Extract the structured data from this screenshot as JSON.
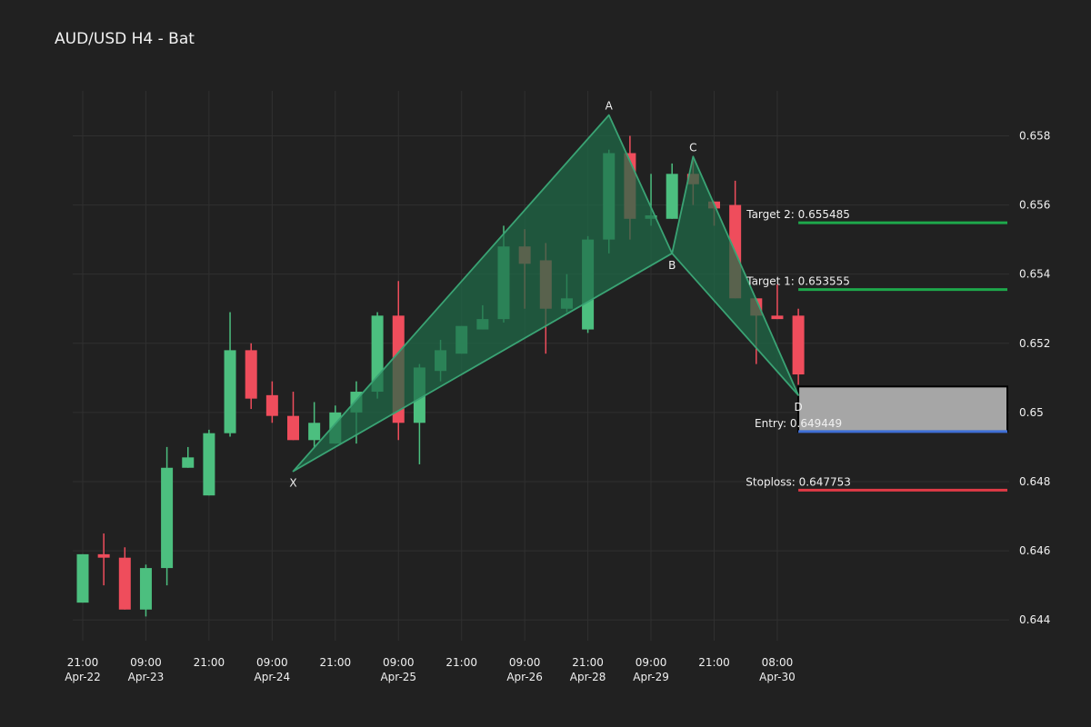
{
  "chart_data": {
    "type": "candlestick",
    "title": "AUD/USD H4 - Bat",
    "grid": true,
    "legend": "none",
    "colors": {
      "background": "#212121",
      "grid": "#303030",
      "up": "#4cbf7f",
      "down": "#ef4d5c",
      "pattern_fill": "#1f6b48",
      "pattern_line": "#3aa374",
      "target": "#1ea84b",
      "entry": "#3f6fd6",
      "stoploss": "#e03a46",
      "zone_fill": "#a6a6a6",
      "text": "#f0f0f0"
    },
    "ylim": [
      0.6434,
      0.6593
    ],
    "yticks": [
      0.644,
      0.646,
      0.648,
      0.65,
      0.652,
      0.654,
      0.656,
      0.658
    ],
    "ytick_labels": [
      "0.644",
      "0.646",
      "0.648",
      "0.65",
      "0.652",
      "0.654",
      "0.656",
      "0.658"
    ],
    "x_range": [
      -0.5,
      41.5
    ],
    "xticks": [
      {
        "index": 0,
        "line1": "21:00",
        "line2": "Apr-22"
      },
      {
        "index": 3,
        "line1": "09:00",
        "line2": "Apr-23"
      },
      {
        "index": 6,
        "line1": "21:00",
        "line2": ""
      },
      {
        "index": 9,
        "line1": "09:00",
        "line2": "Apr-24"
      },
      {
        "index": 12,
        "line1": "21:00",
        "line2": ""
      },
      {
        "index": 15,
        "line1": "09:00",
        "line2": "Apr-25"
      },
      {
        "index": 18,
        "line1": "21:00",
        "line2": ""
      },
      {
        "index": 21,
        "line1": "09:00",
        "line2": "Apr-26"
      },
      {
        "index": 24,
        "line1": "21:00",
        "line2": "Apr-28"
      },
      {
        "index": 27,
        "line1": "09:00",
        "line2": "Apr-29"
      },
      {
        "index": 30,
        "line1": "21:00",
        "line2": ""
      },
      {
        "index": 33,
        "line1": "08:00",
        "line2": "Apr-30"
      }
    ],
    "candles": [
      {
        "o": 0.6445,
        "h": 0.6459,
        "l": 0.6445,
        "c": 0.6459
      },
      {
        "o": 0.6459,
        "h": 0.6465,
        "l": 0.645,
        "c": 0.6458
      },
      {
        "o": 0.6458,
        "h": 0.6461,
        "l": 0.6443,
        "c": 0.6443
      },
      {
        "o": 0.6443,
        "h": 0.6456,
        "l": 0.6441,
        "c": 0.6455
      },
      {
        "o": 0.6455,
        "h": 0.649,
        "l": 0.645,
        "c": 0.6484
      },
      {
        "o": 0.6484,
        "h": 0.649,
        "l": 0.6484,
        "c": 0.6487
      },
      {
        "o": 0.6476,
        "h": 0.6495,
        "l": 0.6476,
        "c": 0.6494
      },
      {
        "o": 0.6494,
        "h": 0.6529,
        "l": 0.6493,
        "c": 0.6518
      },
      {
        "o": 0.6518,
        "h": 0.652,
        "l": 0.6501,
        "c": 0.6504
      },
      {
        "o": 0.6505,
        "h": 0.6509,
        "l": 0.6497,
        "c": 0.6499
      },
      {
        "o": 0.6499,
        "h": 0.6506,
        "l": 0.6492,
        "c": 0.6492
      },
      {
        "o": 0.6492,
        "h": 0.6503,
        "l": 0.649,
        "c": 0.6497
      },
      {
        "o": 0.6491,
        "h": 0.6502,
        "l": 0.6491,
        "c": 0.65
      },
      {
        "o": 0.65,
        "h": 0.6509,
        "l": 0.6491,
        "c": 0.6506
      },
      {
        "o": 0.6506,
        "h": 0.6529,
        "l": 0.6504,
        "c": 0.6528
      },
      {
        "o": 0.6528,
        "h": 0.6538,
        "l": 0.6492,
        "c": 0.6497
      },
      {
        "o": 0.6497,
        "h": 0.6514,
        "l": 0.6485,
        "c": 0.6513
      },
      {
        "o": 0.6512,
        "h": 0.6521,
        "l": 0.6509,
        "c": 0.6518
      },
      {
        "o": 0.6517,
        "h": 0.6525,
        "l": 0.6517,
        "c": 0.6525
      },
      {
        "o": 0.6524,
        "h": 0.6531,
        "l": 0.6524,
        "c": 0.6527
      },
      {
        "o": 0.6527,
        "h": 0.6554,
        "l": 0.6526,
        "c": 0.6548
      },
      {
        "o": 0.6548,
        "h": 0.6553,
        "l": 0.653,
        "c": 0.6543
      },
      {
        "o": 0.6544,
        "h": 0.6549,
        "l": 0.6517,
        "c": 0.653
      },
      {
        "o": 0.653,
        "h": 0.654,
        "l": 0.6529,
        "c": 0.6533
      },
      {
        "o": 0.6524,
        "h": 0.6551,
        "l": 0.6523,
        "c": 0.655
      },
      {
        "o": 0.655,
        "h": 0.6576,
        "l": 0.6546,
        "c": 0.6575
      },
      {
        "o": 0.6575,
        "h": 0.658,
        "l": 0.655,
        "c": 0.6556
      },
      {
        "o": 0.6556,
        "h": 0.6569,
        "l": 0.6554,
        "c": 0.6557
      },
      {
        "o": 0.6556,
        "h": 0.6572,
        "l": 0.6556,
        "c": 0.6569
      },
      {
        "o": 0.6569,
        "h": 0.6573,
        "l": 0.656,
        "c": 0.6566
      },
      {
        "o": 0.6561,
        "h": 0.6561,
        "l": 0.6554,
        "c": 0.6559
      },
      {
        "o": 0.656,
        "h": 0.6567,
        "l": 0.6533,
        "c": 0.6533
      },
      {
        "o": 0.6533,
        "h": 0.6533,
        "l": 0.6514,
        "c": 0.6528
      },
      {
        "o": 0.6528,
        "h": 0.6537,
        "l": 0.6527,
        "c": 0.6527
      },
      {
        "o": 0.6528,
        "h": 0.653,
        "l": 0.6508,
        "c": 0.6511
      }
    ],
    "pattern": {
      "name": "Bat",
      "points": [
        {
          "label": "X",
          "index": 10,
          "price": 0.6483,
          "label_pos": "below"
        },
        {
          "label": "A",
          "index": 25,
          "price": 0.6586,
          "label_pos": "above"
        },
        {
          "label": "B",
          "index": 28,
          "price": 0.6546,
          "label_pos": "below"
        },
        {
          "label": "C",
          "index": 29,
          "price": 0.6574,
          "label_pos": "above"
        },
        {
          "label": "D",
          "index": 34,
          "price": 0.6505,
          "label_pos": "below"
        }
      ]
    },
    "levels": [
      {
        "name": "target2",
        "text": "Target 2: 0.655485",
        "price": 0.655485,
        "color_key": "target"
      },
      {
        "name": "target1",
        "text": "Target 1: 0.653555",
        "price": 0.653555,
        "color_key": "target"
      },
      {
        "name": "entry",
        "text": "Entry: 0.649449",
        "price": 0.649449,
        "color_key": "entry"
      },
      {
        "name": "stoploss",
        "text": "Stoploss: 0.647753",
        "price": 0.647753,
        "color_key": "stoploss"
      }
    ],
    "levels_start_index": 34,
    "levels_end_index": 44,
    "entry_zone": {
      "start_index": 34,
      "end_index": 44,
      "top": 0.65075,
      "bottom": 0.649449
    }
  }
}
